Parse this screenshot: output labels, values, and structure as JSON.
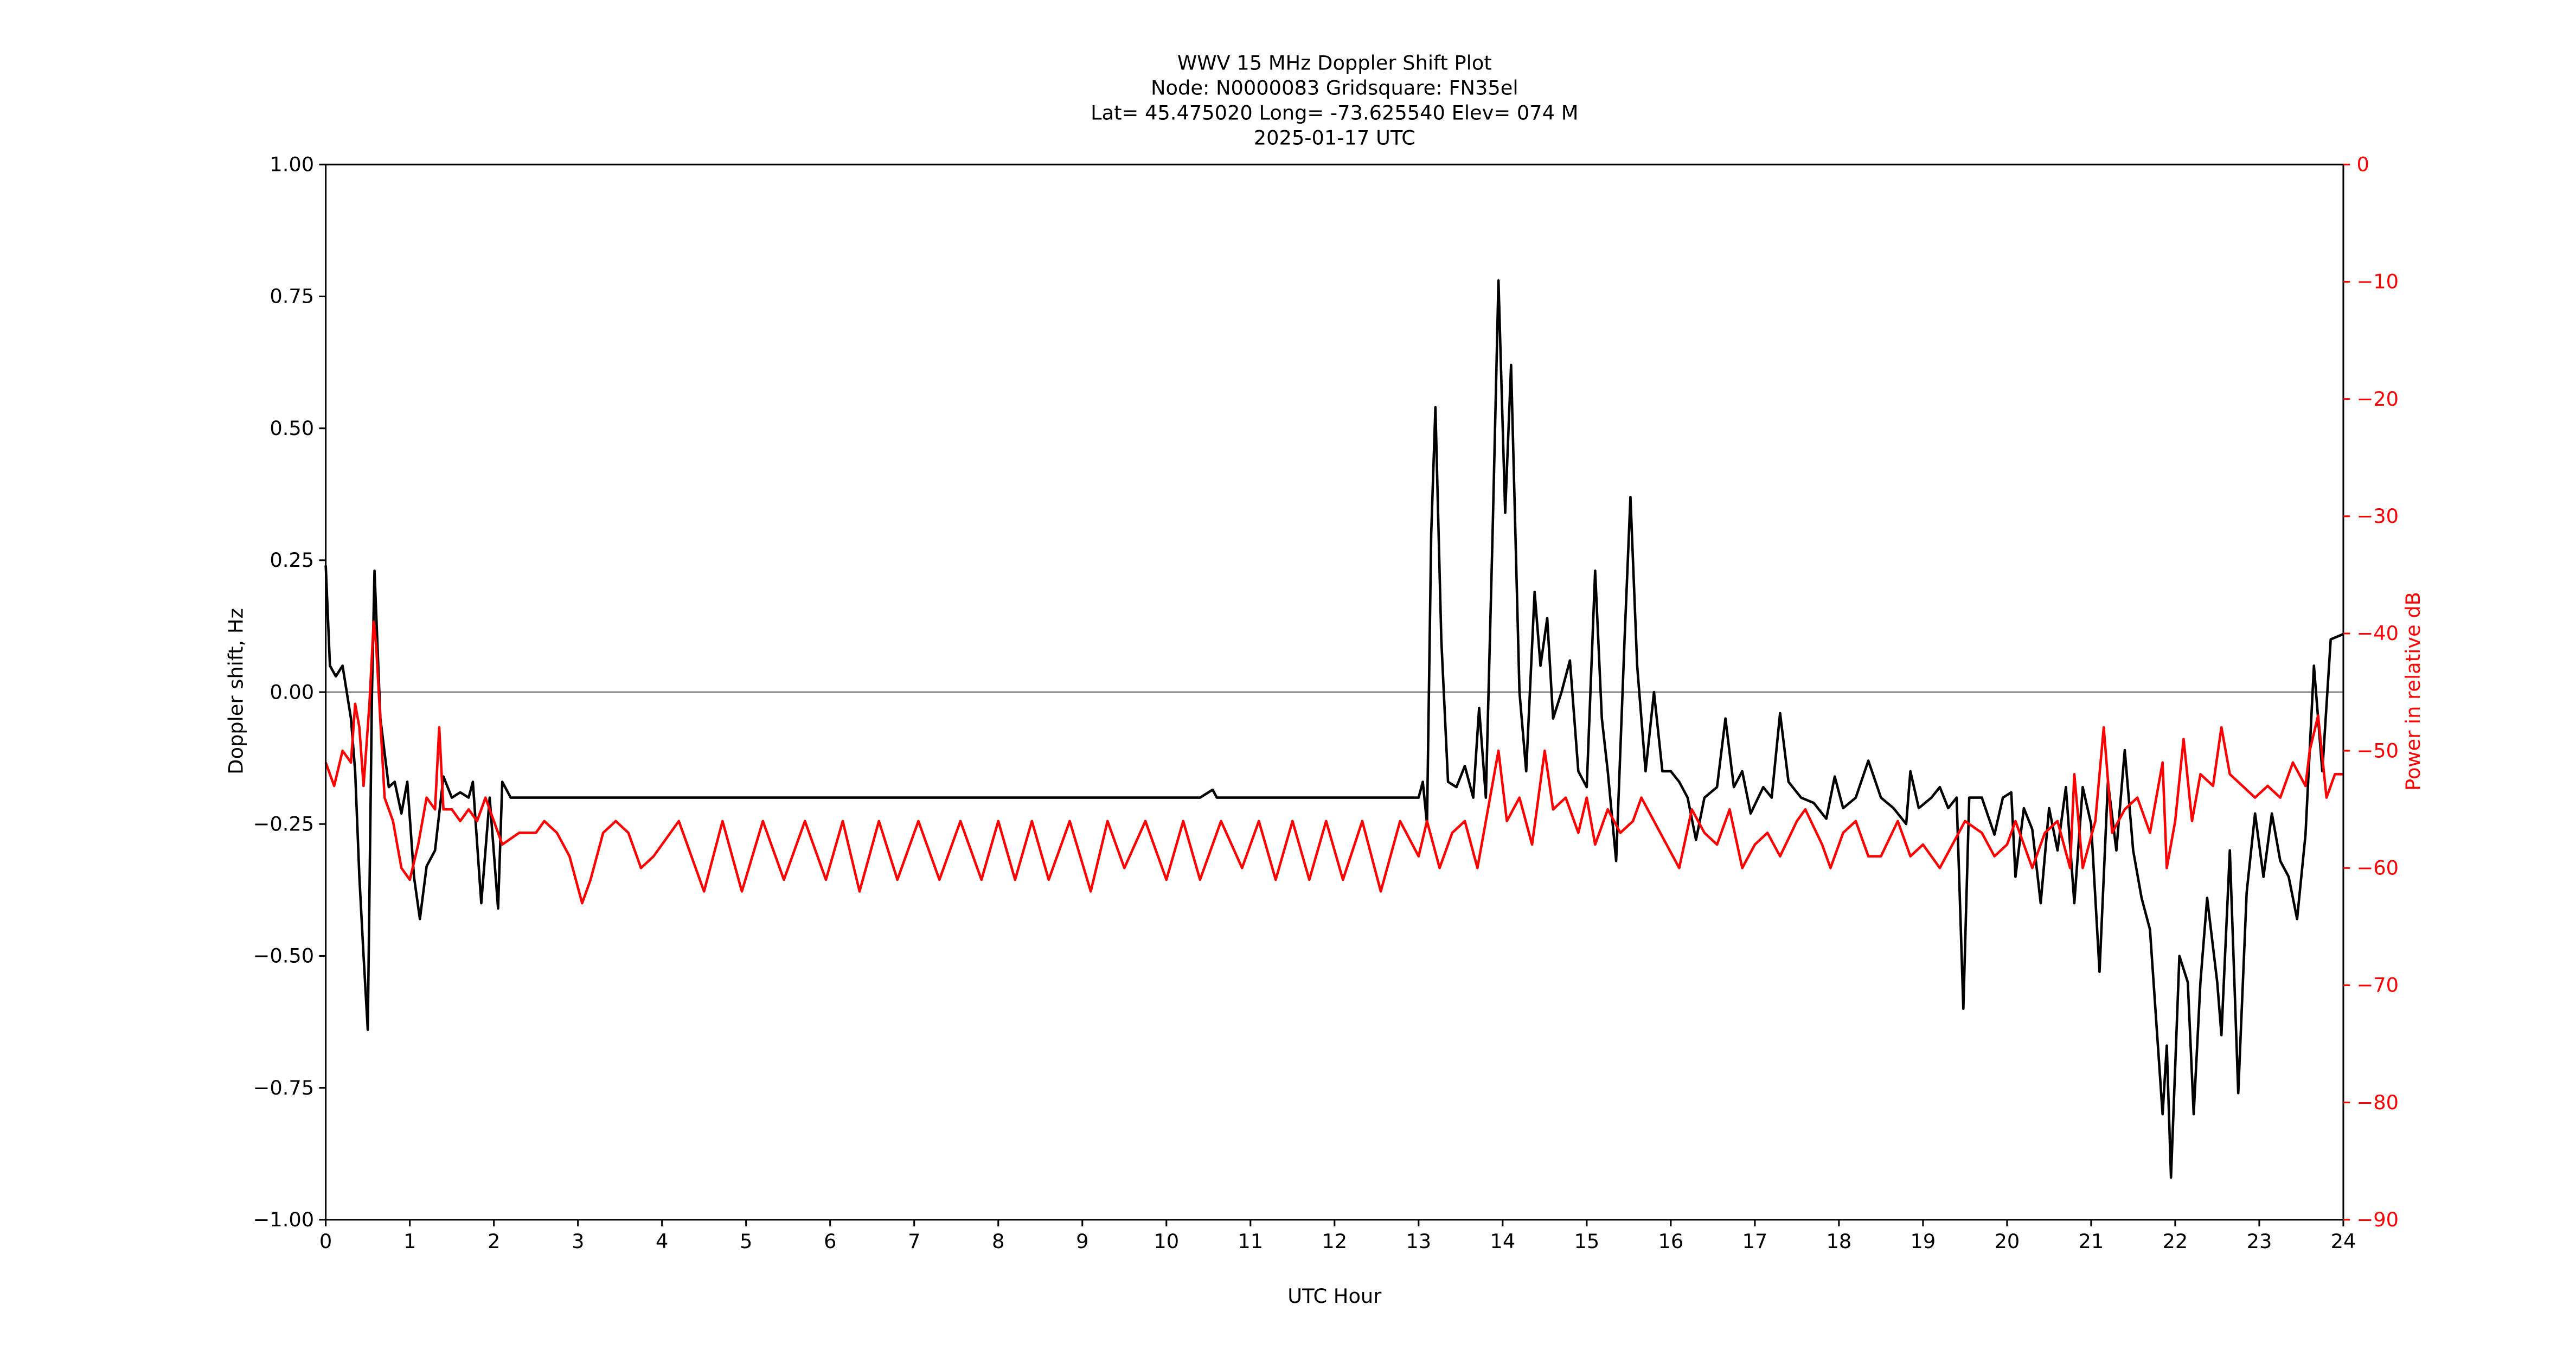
{
  "chart_data": {
    "type": "line",
    "title": [
      "WWV 15 MHz Doppler Shift Plot",
      "Node:  N0000083     Gridsquare:  FN35el",
      "Lat= 45.475020    Long= -73.625540    Elev= 074 M",
      "2025-01-17  UTC"
    ],
    "xlabel": "UTC Hour",
    "ylabel": "Doppler shift, Hz",
    "y2label": "Power in relative dB",
    "xlim": [
      0,
      24
    ],
    "xticks": [
      0,
      1,
      2,
      3,
      4,
      5,
      6,
      7,
      8,
      9,
      10,
      11,
      12,
      13,
      14,
      15,
      16,
      17,
      18,
      19,
      20,
      21,
      22,
      23,
      24
    ],
    "ylim": [
      -1,
      1
    ],
    "yticks": [
      {
        "value": -1,
        "label": "−1.00"
      },
      {
        "value": -0.75,
        "label": "−0.75"
      },
      {
        "value": -0.5,
        "label": "−0.50"
      },
      {
        "value": -0.25,
        "label": "−0.25"
      },
      {
        "value": 0,
        "label": "0.00"
      },
      {
        "value": 0.25,
        "label": "0.25"
      },
      {
        "value": 0.5,
        "label": "0.50"
      },
      {
        "value": 0.75,
        "label": "0.75"
      },
      {
        "value": 1,
        "label": "1.00"
      }
    ],
    "y2lim": [
      -90,
      0
    ],
    "y2ticks": [
      {
        "value": -90,
        "label": "−90"
      },
      {
        "value": -80,
        "label": "−80"
      },
      {
        "value": -70,
        "label": "−70"
      },
      {
        "value": -60,
        "label": "−60"
      },
      {
        "value": -50,
        "label": "−50"
      },
      {
        "value": -40,
        "label": "−40"
      },
      {
        "value": -30,
        "label": "−30"
      },
      {
        "value": -20,
        "label": "−20"
      },
      {
        "value": -10,
        "label": "−10"
      },
      0
    ],
    "hline": 0,
    "series": [
      {
        "color": "#000000",
        "x": [
          0,
          0.05,
          0.12,
          0.2,
          0.3,
          0.35,
          0.4,
          0.45,
          0.5,
          0.55,
          0.58,
          0.65,
          0.75,
          0.82,
          0.9,
          0.97,
          1.05,
          1.12,
          1.2,
          1.3,
          1.4,
          1.5,
          1.6,
          1.7,
          1.75,
          1.85,
          1.95,
          2.05,
          2.1,
          2.2,
          4,
          6,
          8,
          10.4,
          10.55,
          10.6,
          13,
          13.05,
          13.1,
          13.15,
          13.2,
          13.27,
          13.35,
          13.45,
          13.55,
          13.65,
          13.72,
          13.8,
          13.88,
          13.95,
          14.03,
          14.1,
          14.2,
          14.28,
          14.38,
          14.45,
          14.53,
          14.6,
          14.7,
          14.8,
          14.9,
          15,
          15.1,
          15.18,
          15.25,
          15.35,
          15.45,
          15.52,
          15.6,
          15.7,
          15.8,
          15.9,
          16,
          16.1,
          16.2,
          16.3,
          16.4,
          16.55,
          16.65,
          16.75,
          16.85,
          16.95,
          17.1,
          17.2,
          17.3,
          17.4,
          17.55,
          17.7,
          17.85,
          17.95,
          18.05,
          18.2,
          18.35,
          18.5,
          18.65,
          18.8,
          18.85,
          18.95,
          19.1,
          19.2,
          19.3,
          19.4,
          19.48,
          19.55,
          19.7,
          19.85,
          19.95,
          20.05,
          20.1,
          20.2,
          20.3,
          20.4,
          20.5,
          20.6,
          20.7,
          20.8,
          20.9,
          21,
          21.1,
          21.2,
          21.3,
          21.4,
          21.5,
          21.6,
          21.7,
          21.85,
          21.9,
          21.95,
          22.05,
          22.15,
          22.22,
          22.3,
          22.38,
          22.5,
          22.55,
          22.65,
          22.75,
          22.85,
          22.95,
          23.05,
          23.15,
          23.25,
          23.35,
          23.45,
          23.55,
          23.65,
          23.75,
          23.85,
          24
        ],
        "values": [
          0.24,
          0.05,
          0.03,
          0.05,
          -0.05,
          -0.15,
          -0.35,
          -0.5,
          -0.64,
          0,
          0.23,
          -0.05,
          -0.18,
          -0.17,
          -0.23,
          -0.17,
          -0.35,
          -0.43,
          -0.33,
          -0.3,
          -0.16,
          -0.2,
          -0.19,
          -0.2,
          -0.17,
          -0.4,
          -0.2,
          -0.41,
          -0.17,
          -0.2,
          -0.2,
          -0.2,
          -0.2,
          -0.2,
          -0.185,
          -0.2,
          -0.2,
          -0.17,
          -0.25,
          0.3,
          0.54,
          0.1,
          -0.17,
          -0.18,
          -0.14,
          -0.2,
          -0.03,
          -0.2,
          0.3,
          0.78,
          0.34,
          0.62,
          0,
          -0.15,
          0.19,
          0.05,
          0.14,
          -0.05,
          0,
          0.06,
          -0.15,
          -0.18,
          0.23,
          -0.05,
          -0.15,
          -0.32,
          0.1,
          0.37,
          0.05,
          -0.15,
          0,
          -0.15,
          -0.15,
          -0.17,
          -0.2,
          -0.28,
          -0.2,
          -0.18,
          -0.05,
          -0.18,
          -0.15,
          -0.23,
          -0.18,
          -0.2,
          -0.04,
          -0.17,
          -0.2,
          -0.21,
          -0.24,
          -0.16,
          -0.22,
          -0.2,
          -0.13,
          -0.2,
          -0.22,
          -0.25,
          -0.15,
          -0.22,
          -0.2,
          -0.18,
          -0.22,
          -0.2,
          -0.6,
          -0.2,
          -0.2,
          -0.27,
          -0.2,
          -0.19,
          -0.35,
          -0.22,
          -0.26,
          -0.4,
          -0.22,
          -0.3,
          -0.18,
          -0.4,
          -0.18,
          -0.25,
          -0.53,
          -0.17,
          -0.3,
          -0.11,
          -0.3,
          -0.39,
          -0.45,
          -0.8,
          -0.67,
          -0.92,
          -0.5,
          -0.55,
          -0.8,
          -0.55,
          -0.39,
          -0.55,
          -0.65,
          -0.3,
          -0.76,
          -0.38,
          -0.23,
          -0.35,
          -0.23,
          -0.32,
          -0.35,
          -0.43,
          -0.27,
          0.05,
          -0.15,
          0.1,
          0.11
        ]
      },
      {
        "color": "#ff0000",
        "axis": "y2",
        "x": [
          0,
          0.1,
          0.2,
          0.3,
          0.35,
          0.4,
          0.45,
          0.52,
          0.57,
          0.6,
          0.7,
          0.8,
          0.9,
          1,
          1.1,
          1.2,
          1.3,
          1.35,
          1.4,
          1.5,
          1.6,
          1.7,
          1.8,
          1.9,
          2,
          2.1,
          2.3,
          2.5,
          2.6,
          2.75,
          2.9,
          3.05,
          3.15,
          3.3,
          3.45,
          3.6,
          3.75,
          3.9,
          4.2,
          4.5,
          4.72,
          4.95,
          5.2,
          5.45,
          5.7,
          5.95,
          6.15,
          6.35,
          6.58,
          6.8,
          7.05,
          7.3,
          7.55,
          7.8,
          8,
          8.2,
          8.4,
          8.6,
          8.85,
          9.1,
          9.3,
          9.5,
          9.75,
          10,
          10.2,
          10.4,
          10.65,
          10.9,
          11.1,
          11.3,
          11.5,
          11.7,
          11.9,
          12.1,
          12.33,
          12.55,
          12.78,
          13,
          13.1,
          13.25,
          13.4,
          13.55,
          13.7,
          13.8,
          13.95,
          14.05,
          14.2,
          14.35,
          14.5,
          14.6,
          14.75,
          14.9,
          15,
          15.1,
          15.25,
          15.4,
          15.55,
          15.65,
          15.8,
          15.95,
          16.1,
          16.25,
          16.4,
          16.55,
          16.7,
          16.85,
          17,
          17.15,
          17.3,
          17.5,
          17.6,
          17.8,
          17.9,
          18.05,
          18.2,
          18.35,
          18.5,
          18.7,
          18.85,
          19,
          19.2,
          19.35,
          19.5,
          19.7,
          19.85,
          20,
          20.1,
          20.3,
          20.45,
          20.6,
          20.75,
          20.8,
          20.9,
          21.05,
          21.15,
          21.25,
          21.4,
          21.55,
          21.7,
          21.85,
          21.9,
          22,
          22.1,
          22.2,
          22.3,
          22.45,
          22.55,
          22.65,
          22.8,
          22.95,
          23.1,
          23.25,
          23.4,
          23.55,
          23.6,
          23.7,
          23.8,
          23.9,
          24
        ],
        "values": [
          -51,
          -53,
          -50,
          -51,
          -46,
          -48,
          -53,
          -46,
          -39,
          -41,
          -54,
          -56,
          -60,
          -61,
          -58,
          -54,
          -55,
          -48,
          -55,
          -55,
          -56,
          -55,
          -56,
          -54,
          -56,
          -58,
          -57,
          -57,
          -56,
          -57,
          -59,
          -63,
          -61,
          -57,
          -56,
          -57,
          -60,
          -59,
          -56,
          -62,
          -56,
          -62,
          -56,
          -61,
          -56,
          -61,
          -56,
          -62,
          -56,
          -61,
          -56,
          -61,
          -56,
          -61,
          -56,
          -61,
          -56,
          -61,
          -56,
          -62,
          -56,
          -60,
          -56,
          -61,
          -56,
          -61,
          -56,
          -60,
          -56,
          -61,
          -56,
          -61,
          -56,
          -61,
          -56,
          -62,
          -56,
          -59,
          -56,
          -60,
          -57,
          -56,
          -60,
          -56,
          -50,
          -56,
          -54,
          -58,
          -50,
          -55,
          -54,
          -57,
          -54,
          -58,
          -55,
          -57,
          -56,
          -54,
          -56,
          -58,
          -60,
          -55,
          -57,
          -58,
          -55,
          -60,
          -58,
          -57,
          -59,
          -56,
          -55,
          -58,
          -60,
          -57,
          -56,
          -59,
          -59,
          -56,
          -59,
          -58,
          -60,
          -58,
          -56,
          -57,
          -59,
          -58,
          -56,
          -60,
          -57,
          -56,
          -60,
          -52,
          -60,
          -56,
          -48,
          -57,
          -55,
          -54,
          -57,
          -51,
          -60,
          -56,
          -49,
          -56,
          -52,
          -53,
          -48,
          -52,
          -53,
          -54,
          -53,
          -54,
          -51,
          -53,
          -50,
          -47,
          -54,
          -52,
          -52
        ]
      }
    ]
  }
}
